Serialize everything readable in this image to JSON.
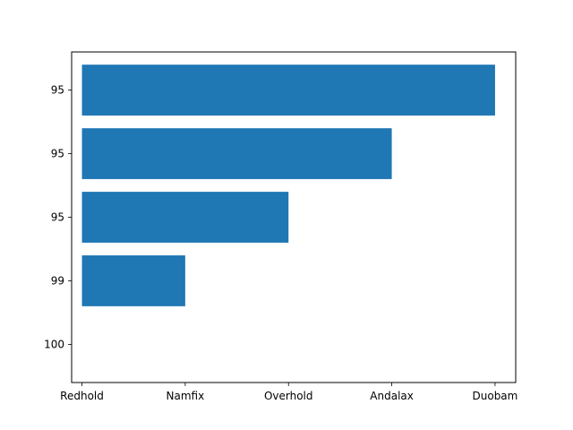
{
  "chart_data": {
    "type": "bar",
    "orientation": "horizontal",
    "title": "",
    "xlabel": "",
    "ylabel": "",
    "categories": [
      "100",
      "99",
      "95",
      "95",
      "95"
    ],
    "x_tick_labels": [
      "Redhold",
      "Namfix",
      "Overhold",
      "Andalax",
      "Duobam"
    ],
    "values": [
      0,
      1,
      2,
      3,
      4
    ],
    "xlim": [
      -0.1,
      4.2
    ],
    "grid": false,
    "bar_color": "#1f77b4"
  }
}
